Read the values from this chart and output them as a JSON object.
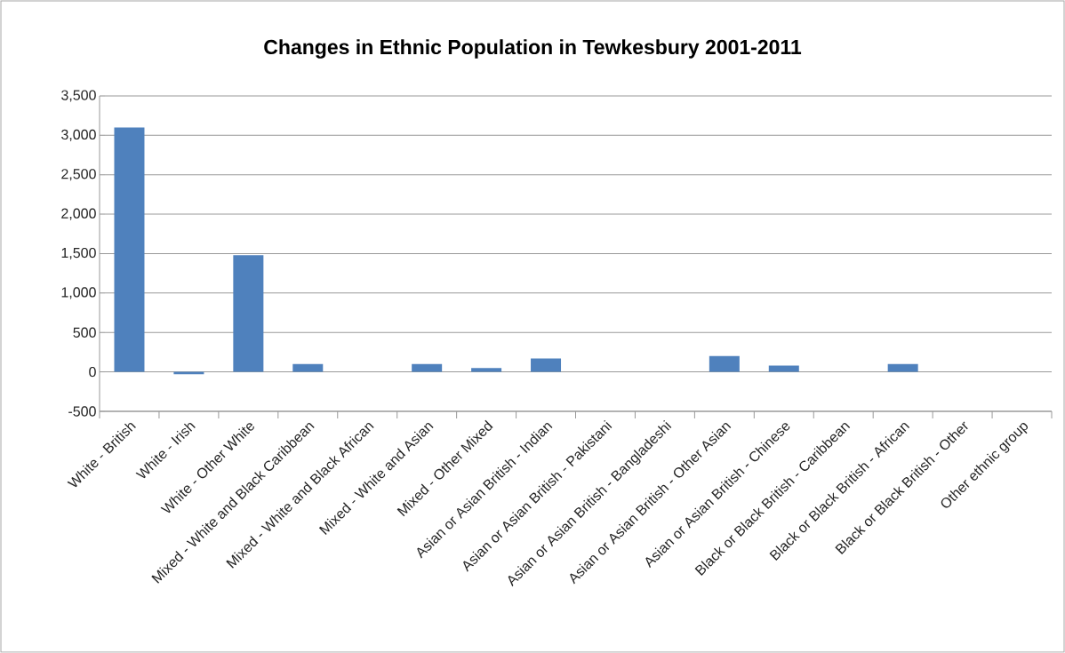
{
  "chart_data": {
    "type": "bar",
    "title": "Changes in Ethnic Population in Tewkesbury 2001-2011",
    "categories": [
      "White - British",
      "White - Irish",
      "White - Other White",
      "Mixed - White and Black Caribbean",
      "Mixed - White and Black African",
      "Mixed - White and Asian",
      "Mixed - Other Mixed",
      "Asian or Asian British - Indian",
      "Asian or Asian British - Pakistani",
      "Asian or Asian British - Bangladeshi",
      "Asian or Asian British - Other Asian",
      "Asian or Asian British - Chinese",
      "Black or Black British - Caribbean",
      "Black or Black British - African",
      "Black or Black British - Other",
      "Other ethnic group"
    ],
    "values": [
      3100,
      -30,
      1480,
      100,
      0,
      100,
      50,
      170,
      0,
      0,
      200,
      80,
      0,
      100,
      0,
      0
    ],
    "color": "#4f81bd",
    "ylim": [
      -500,
      3500
    ],
    "yticks": [
      {
        "value": -500,
        "label": "-500"
      },
      0,
      {
        "value": 500,
        "label": "500"
      },
      {
        "value": 1000,
        "label": "1,000"
      },
      {
        "value": 1500,
        "label": "1,500"
      },
      {
        "value": 2000,
        "label": "2,000"
      },
      {
        "value": 2500,
        "label": "2,500"
      },
      {
        "value": 3000,
        "label": "3,000"
      },
      {
        "value": 3500,
        "label": "3,500"
      }
    ],
    "grid": "y"
  }
}
